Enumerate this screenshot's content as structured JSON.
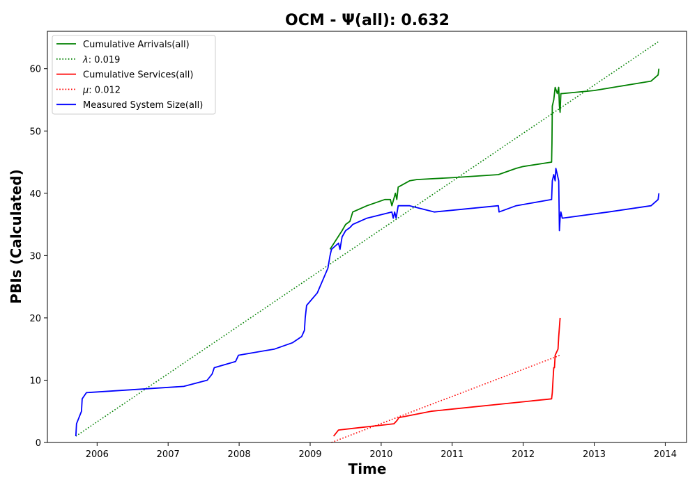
{
  "chart_data": {
    "type": "line",
    "title": "OCM -  Ψ(all): 0.632",
    "xlabel": "Time",
    "ylabel": "PBIs (Calculated)",
    "xlim": [
      2005.3,
      2014.3
    ],
    "ylim": [
      0,
      66
    ],
    "x_ticks": [
      2006,
      2007,
      2008,
      2009,
      2010,
      2011,
      2012,
      2013,
      2014
    ],
    "x_tick_labels": [
      "2006",
      "2007",
      "2008",
      "2009",
      "2010",
      "2011",
      "2012",
      "2013",
      "2014"
    ],
    "y_ticks": [
      0,
      10,
      20,
      30,
      40,
      50,
      60
    ],
    "y_tick_labels": [
      "0",
      "10",
      "20",
      "30",
      "40",
      "50",
      "60"
    ],
    "grid": false,
    "legend_position": "top-left",
    "series": [
      {
        "name": "Cumulative Arrivals(all)",
        "color": "#008000",
        "style": "solid",
        "x": [
          2009.28,
          2009.45,
          2009.5,
          2009.56,
          2009.6,
          2009.8,
          2010.05,
          2010.13,
          2010.15,
          2010.2,
          2010.22,
          2010.24,
          2010.4,
          2010.5,
          2011.0,
          2011.65,
          2011.9,
          2012.0,
          2012.4,
          2012.405,
          2012.41,
          2012.43,
          2012.45,
          2012.48,
          2012.5,
          2012.51,
          2012.52,
          2012.53,
          2012.55,
          2013.0,
          2013.8,
          2013.9,
          2013.91
        ],
        "y": [
          31,
          34,
          35,
          35.5,
          37,
          38,
          39,
          39,
          38,
          40,
          39,
          41,
          42,
          42.2,
          42.5,
          43,
          44,
          44.3,
          45,
          48,
          54,
          55,
          57,
          56,
          57,
          54,
          53,
          56,
          56,
          56.5,
          58,
          59,
          60
        ]
      },
      {
        "name": "λ: 0.019",
        "color": "#008000",
        "style": "dotted",
        "x": [
          2005.7,
          2013.9
        ],
        "y": [
          1,
          64.3
        ]
      },
      {
        "name": "Cumulative Services(all)",
        "color": "#ff0000",
        "style": "solid",
        "x": [
          2009.33,
          2009.4,
          2010.18,
          2010.22,
          2010.25,
          2010.7,
          2012.4,
          2012.41,
          2012.42,
          2012.43,
          2012.44,
          2012.45,
          2012.47,
          2012.49,
          2012.5,
          2012.52
        ],
        "y": [
          1,
          2,
          3,
          3.5,
          4,
          5,
          7,
          8,
          10,
          12,
          12,
          14,
          14.5,
          15,
          17,
          20
        ]
      },
      {
        "name": "μ: 0.012",
        "color": "#ff0000",
        "style": "dotted",
        "x": [
          2009.3,
          2012.52
        ],
        "y": [
          0,
          14
        ]
      },
      {
        "name": "Measured System Size(all)",
        "color": "#0000ff",
        "style": "solid",
        "x": [
          2005.7,
          2005.71,
          2005.78,
          2005.79,
          2005.85,
          2007.22,
          2007.55,
          2007.62,
          2007.65,
          2007.95,
          2007.99,
          2008.5,
          2008.75,
          2008.88,
          2008.92,
          2008.93,
          2008.95,
          2009.1,
          2009.25,
          2009.28,
          2009.3,
          2009.4,
          2009.42,
          2009.45,
          2009.5,
          2009.56,
          2009.6,
          2009.8,
          2010.15,
          2010.17,
          2010.19,
          2010.21,
          2010.24,
          2010.4,
          2010.75,
          2011.65,
          2011.66,
          2011.9,
          2012.4,
          2012.41,
          2012.43,
          2012.45,
          2012.46,
          2012.48,
          2012.5,
          2012.51,
          2012.52,
          2012.53,
          2012.55,
          2013.2,
          2013.8,
          2013.9,
          2013.91
        ],
        "y": [
          1,
          3,
          5,
          7,
          8,
          9,
          10,
          11,
          12,
          13,
          14,
          15,
          16,
          17,
          18,
          20,
          22,
          24,
          28,
          30,
          31,
          32,
          31,
          33,
          34,
          34.5,
          35,
          36,
          37,
          36,
          37,
          36,
          38,
          38,
          37,
          38,
          37,
          38,
          39,
          42,
          43,
          42,
          44,
          43,
          42,
          34,
          36,
          37,
          36,
          37,
          38,
          39,
          40
        ]
      }
    ],
    "legend": [
      {
        "label_prefix": "",
        "label_symbol": "",
        "label_text": "Cumulative Arrivals(all)",
        "color": "#008000",
        "style": "solid"
      },
      {
        "label_prefix": "",
        "label_symbol": "λ",
        "label_text": ": 0.019",
        "color": "#008000",
        "style": "dotted"
      },
      {
        "label_prefix": "",
        "label_symbol": "",
        "label_text": "Cumulative Services(all)",
        "color": "#ff0000",
        "style": "solid"
      },
      {
        "label_prefix": "",
        "label_symbol": "μ",
        "label_text": ": 0.012",
        "color": "#ff0000",
        "style": "dotted"
      },
      {
        "label_prefix": "",
        "label_symbol": "",
        "label_text": "Measured System Size(all)",
        "color": "#0000ff",
        "style": "solid"
      }
    ]
  }
}
